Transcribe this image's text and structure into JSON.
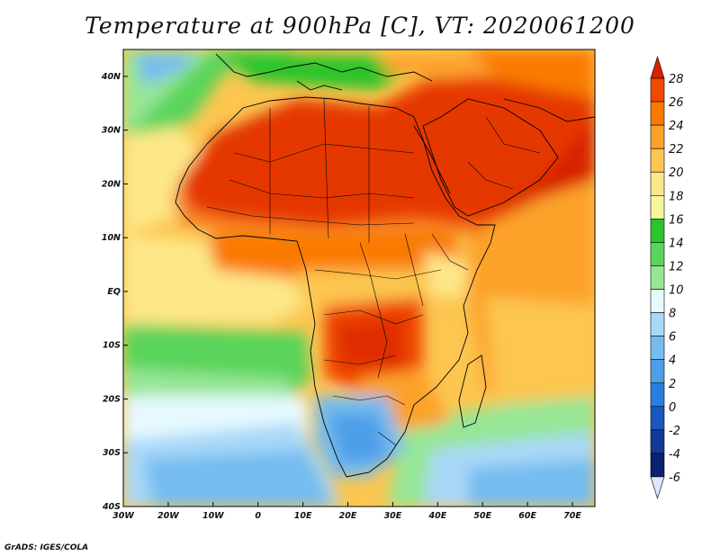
{
  "title": "Temperature at 900hPa [C], VT: 2020061200",
  "credit": "GrADS: IGES/COLA",
  "map": {
    "projection": "latlon",
    "lon_range": [
      -30,
      75
    ],
    "lat_range": [
      -40,
      45
    ],
    "lon_ticks": [
      {
        "value": -30,
        "label": "30W"
      },
      {
        "value": -20,
        "label": "20W"
      },
      {
        "value": -10,
        "label": "10W"
      },
      {
        "value": 0,
        "label": "0"
      },
      {
        "value": 10,
        "label": "10E"
      },
      {
        "value": 20,
        "label": "20E"
      },
      {
        "value": 30,
        "label": "30E"
      },
      {
        "value": 40,
        "label": "40E"
      },
      {
        "value": 50,
        "label": "50E"
      },
      {
        "value": 60,
        "label": "60E"
      },
      {
        "value": 70,
        "label": "70E"
      }
    ],
    "lat_ticks": [
      {
        "value": 40,
        "label": "40N"
      },
      {
        "value": 30,
        "label": "30N"
      },
      {
        "value": 20,
        "label": "20N"
      },
      {
        "value": 10,
        "label": "10N"
      },
      {
        "value": 0,
        "label": "EQ"
      },
      {
        "value": -10,
        "label": "10S"
      },
      {
        "value": -20,
        "label": "20S"
      },
      {
        "value": -30,
        "label": "30S"
      },
      {
        "value": -40,
        "label": "40S"
      }
    ]
  },
  "colorbar": {
    "units": "C",
    "levels": [
      "28",
      "26",
      "24",
      "22",
      "20",
      "18",
      "16",
      "14",
      "12",
      "10",
      "8",
      "6",
      "4",
      "2",
      "0",
      "-2",
      "-4",
      "-6"
    ],
    "colors": [
      "#d82200",
      "#f04a00",
      "#fa7a00",
      "#fca22a",
      "#fcc650",
      "#fde788",
      "#f4f7a0",
      "#2cc42c",
      "#5ad45a",
      "#96e696",
      "#e6f9ff",
      "#a8d8f8",
      "#74bcf0",
      "#4e9ee8",
      "#2a7ee0",
      "#1a58c0",
      "#143a98",
      "#0a2070",
      "#dde6ff"
    ]
  }
}
